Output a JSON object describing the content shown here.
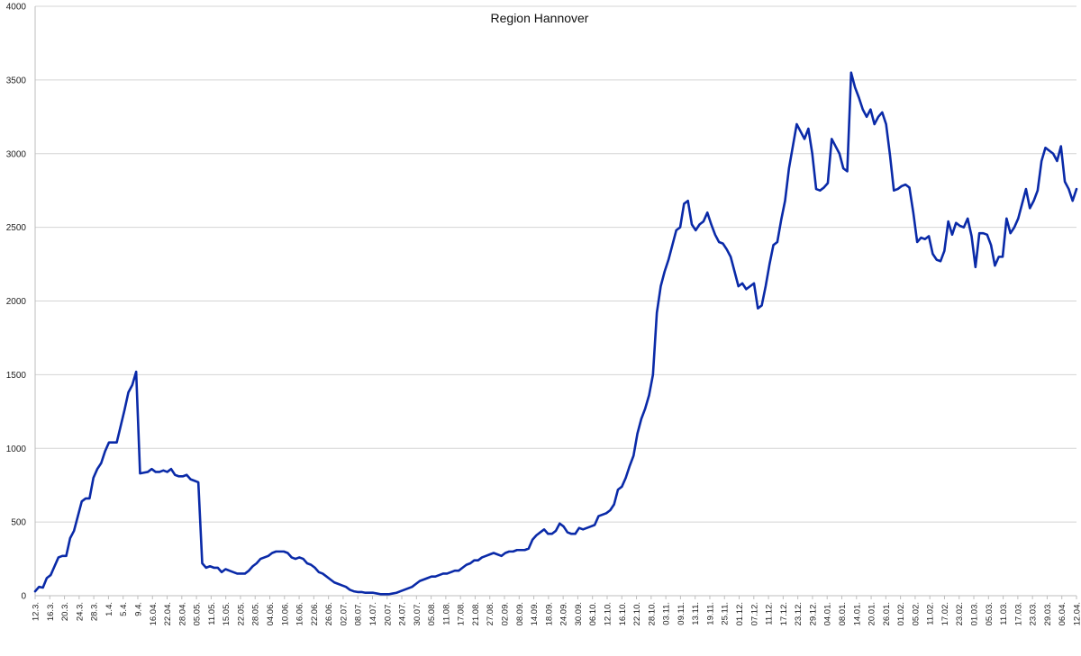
{
  "chart_data": {
    "type": "line",
    "title": "Region Hannover",
    "xlabel": "",
    "ylabel": "",
    "ylim": [
      0,
      4000
    ],
    "yticks": [
      0,
      500,
      1000,
      1500,
      2000,
      2500,
      3000,
      3500,
      4000
    ],
    "grid": true,
    "legend": "none",
    "color": "#0a2aa8",
    "x_tick_labels": [
      "12.3.",
      "16.3.",
      "20.3.",
      "24.3.",
      "28.3.",
      "1.4.",
      "5.4.",
      "9.4.",
      "16.04.",
      "22.04.",
      "28.04.",
      "05.05.",
      "11.05.",
      "15.05.",
      "22.05.",
      "28.05.",
      "04.06.",
      "10.06.",
      "16.06.",
      "22.06.",
      "26.06.",
      "02.07.",
      "08.07.",
      "14.07.",
      "20.07.",
      "24.07.",
      "30.07.",
      "05.08.",
      "11.08.",
      "17.08.",
      "21.08.",
      "27.08.",
      "02.09.",
      "08.09.",
      "14.09.",
      "18.09.",
      "24.09.",
      "30.09.",
      "06.10.",
      "12.10.",
      "16.10.",
      "22.10.",
      "28.10.",
      "03.11.",
      "09.11.",
      "13.11.",
      "19.11.",
      "25.11.",
      "01.12.",
      "07.12.",
      "11.12.",
      "17.12.",
      "23.12.",
      "29.12.",
      "04.01.",
      "08.01.",
      "14.01.",
      "20.01.",
      "26.01.",
      "01.02.",
      "05.02.",
      "11.02.",
      "17.02.",
      "23.02.",
      "01.03.",
      "05.03.",
      "11.03.",
      "17.03.",
      "23.03.",
      "29.03.",
      "06.04.",
      "12.04."
    ],
    "values": [
      30,
      60,
      55,
      120,
      140,
      200,
      260,
      270,
      270,
      390,
      440,
      540,
      640,
      660,
      660,
      800,
      860,
      900,
      980,
      1040,
      1040,
      1040,
      1150,
      1260,
      1380,
      1430,
      1520,
      830,
      835,
      840,
      860,
      840,
      840,
      850,
      840,
      860,
      820,
      810,
      810,
      820,
      790,
      780,
      770,
      220,
      190,
      200,
      190,
      190,
      160,
      180,
      170,
      160,
      150,
      150,
      150,
      170,
      200,
      220,
      250,
      260,
      270,
      290,
      300,
      300,
      300,
      290,
      260,
      250,
      260,
      250,
      220,
      210,
      190,
      160,
      150,
      130,
      110,
      90,
      80,
      70,
      60,
      40,
      30,
      25,
      25,
      20,
      20,
      20,
      15,
      10,
      10,
      10,
      15,
      20,
      30,
      40,
      50,
      60,
      80,
      100,
      110,
      120,
      130,
      130,
      140,
      150,
      150,
      160,
      170,
      170,
      190,
      210,
      220,
      240,
      240,
      260,
      270,
      280,
      290,
      280,
      270,
      290,
      300,
      300,
      310,
      310,
      310,
      320,
      380,
      410,
      430,
      450,
      420,
      420,
      440,
      490,
      470,
      430,
      420,
      420,
      460,
      450,
      460,
      470,
      480,
      540,
      550,
      560,
      580,
      620,
      720,
      740,
      800,
      880,
      950,
      1100,
      1200,
      1270,
      1360,
      1500,
      1920,
      2100,
      2200,
      2280,
      2380,
      2480,
      2500,
      2660,
      2680,
      2520,
      2480,
      2520,
      2540,
      2600,
      2520,
      2450,
      2400,
      2390,
      2350,
      2300,
      2200,
      2100,
      2120,
      2080,
      2100,
      2120,
      1950,
      1970,
      2100,
      2250,
      2380,
      2400,
      2550,
      2680,
      2900,
      3050,
      3200,
      3150,
      3100,
      3170,
      3000,
      2760,
      2750,
      2770,
      2800,
      3100,
      3050,
      3000,
      2900,
      2880,
      3550,
      3450,
      3380,
      3300,
      3250,
      3300,
      3200,
      3250,
      3280,
      3200,
      2990,
      2750,
      2760,
      2780,
      2790,
      2770,
      2600,
      2400,
      2430,
      2420,
      2440,
      2320,
      2280,
      2270,
      2340,
      2540,
      2450,
      2530,
      2510,
      2500,
      2560,
      2440,
      2230,
      2460,
      2460,
      2450,
      2380,
      2240,
      2300,
      2300,
      2560,
      2460,
      2500,
      2560,
      2660,
      2760,
      2630,
      2680,
      2750,
      2950,
      3040,
      3020,
      3000,
      2950,
      3050,
      2810,
      2760,
      2680,
      2760
    ]
  }
}
